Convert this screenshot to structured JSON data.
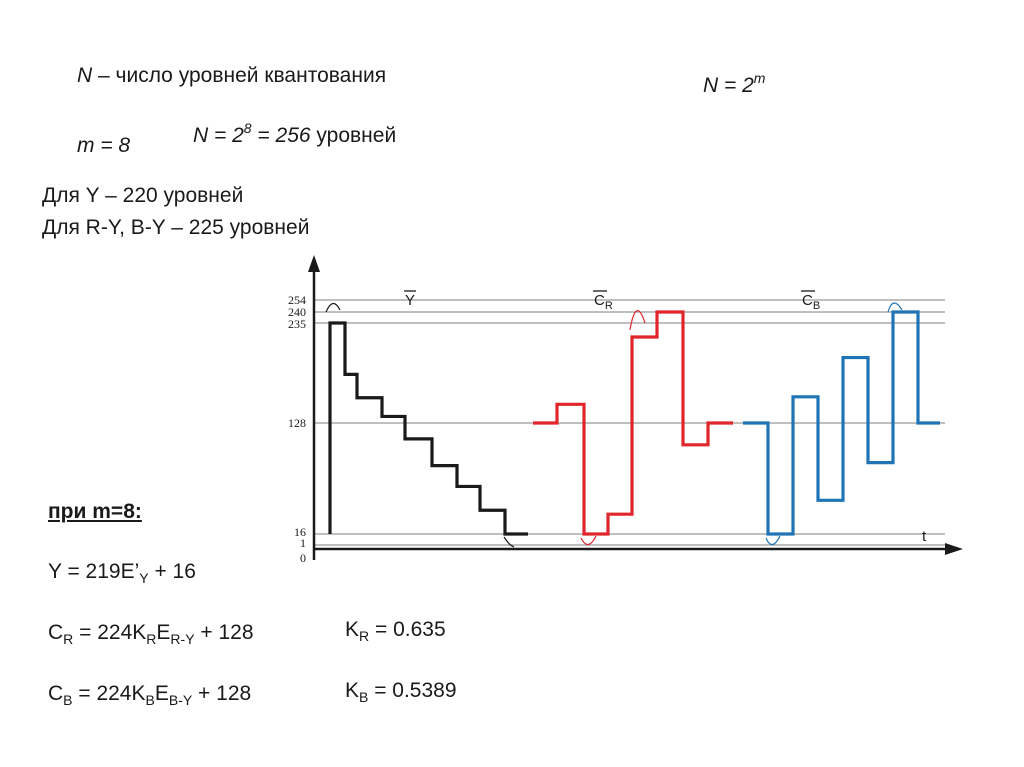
{
  "header": {
    "n_def_var": "N",
    "n_def_text": " – число уровней квантования",
    "n_formula_lhs": "N = 2",
    "n_formula_exp": "m",
    "m_value": "m = 8",
    "n_calc_lhs": "N = 2",
    "n_calc_exp": "8",
    "n_calc_rest": " = 256",
    "n_calc_unit": " уровней",
    "levels_y": "Для Y – 220 уровней",
    "levels_ry_by": "Для R-Y, B-Y – 225 уровней"
  },
  "formulas": {
    "heading": "при m=8:",
    "y_formula": {
      "a": "Y = 219E’",
      "sub": "Y",
      "b": " + 16"
    },
    "cr_formula": {
      "a": "C",
      "s1": "R",
      "b": " = 224K",
      "s2": "R",
      "c": "E",
      "s3": "R-Y",
      "d": " + 128"
    },
    "cb_formula": {
      "a": "C",
      "s1": "B",
      "b": " = 224K",
      "s2": "B",
      "c": "E",
      "s3": "B-Y",
      "d": " + 128"
    },
    "kr": {
      "a": "K",
      "sub": "R",
      "b": " = 0.635"
    },
    "kb": {
      "a": "K",
      "sub": "B",
      "b": " = 0.5389"
    }
  },
  "chart_data": {
    "type": "line",
    "y_ticks": [
      "254",
      "240",
      "235",
      "128",
      "16",
      "1",
      "0"
    ],
    "y_tick_values": [
      254,
      240,
      235,
      128,
      16,
      1,
      0
    ],
    "x_label": "t",
    "ylim": [
      0,
      254
    ],
    "gridlines_at": [
      254,
      240,
      235,
      128,
      16,
      1
    ],
    "series": [
      {
        "name": "Y",
        "overline": true,
        "subscript": "",
        "color": "#1a1a1a",
        "values": [
          16,
          235,
          180,
          155,
          135,
          112,
          85,
          64,
          40,
          16
        ]
      },
      {
        "name": "C",
        "overline": true,
        "subscript": "R",
        "color": "#e0262b",
        "values": [
          128,
          148,
          16,
          36,
          220,
          240,
          106,
          128
        ]
      },
      {
        "name": "C",
        "overline": true,
        "subscript": "B",
        "color": "#1f74b6",
        "values": [
          128,
          16,
          156,
          50,
          198,
          88,
          240,
          128
        ]
      }
    ]
  }
}
